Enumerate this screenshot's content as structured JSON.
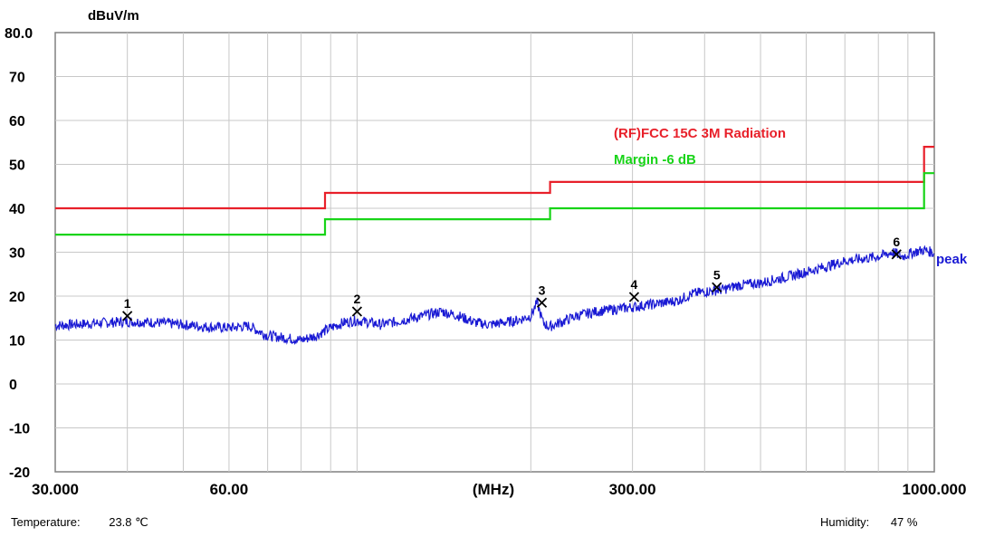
{
  "chart_data": {
    "type": "line",
    "ylabel": "dBuV/m",
    "xlabel": "(MHz)",
    "xscale": "log",
    "xlim": [
      30,
      1000
    ],
    "ylim": [
      -20,
      80
    ],
    "yticks": [
      "80.0",
      "70",
      "60",
      "50",
      "40",
      "30",
      "20",
      "10",
      "0",
      "-10",
      "-20"
    ],
    "xticks": [
      {
        "value": 30,
        "label": "30.000"
      },
      {
        "value": 60,
        "label": "60.00"
      },
      {
        "value": 300,
        "label": "300.00"
      },
      {
        "value": 1000,
        "label": "1000.000"
      }
    ],
    "grid": true,
    "legend_placement": "upper-right, inside plot",
    "series": [
      {
        "name": "(RF)FCC 15C 3M Radiation",
        "color": "#e8202a",
        "step": true,
        "x": [
          30,
          88,
          88,
          216,
          216,
          960,
          960,
          1000
        ],
        "y": [
          40,
          40,
          43.5,
          43.5,
          46,
          46,
          54,
          54
        ]
      },
      {
        "name": "Margin -6 dB",
        "color": "#18d418",
        "step": true,
        "x": [
          30,
          88,
          88,
          216,
          216,
          960,
          960,
          1000
        ],
        "y": [
          34,
          34,
          37.5,
          37.5,
          40,
          40,
          48,
          48
        ]
      },
      {
        "name": "peak",
        "color": "#1a1ad4",
        "x": [
          30,
          35,
          40,
          45,
          50,
          55,
          60,
          65,
          70,
          75,
          80,
          85,
          90,
          95,
          100,
          110,
          120,
          130,
          140,
          150,
          160,
          170,
          180,
          190,
          200,
          205,
          210,
          215,
          220,
          230,
          240,
          260,
          280,
          300,
          320,
          340,
          360,
          380,
          400,
          430,
          460,
          500,
          540,
          580,
          620,
          660,
          700,
          750,
          800,
          850,
          880,
          920,
          960,
          990,
          1000
        ],
        "y": [
          13.3,
          13.8,
          14.2,
          14.0,
          13.5,
          13.0,
          12.8,
          13.2,
          11.0,
          10.5,
          10.0,
          11.0,
          12.8,
          14.0,
          14.5,
          13.5,
          14.5,
          15.5,
          16.5,
          15.5,
          14.0,
          13.5,
          14.0,
          14.5,
          15.5,
          18.5,
          14.0,
          13.0,
          13.5,
          14.5,
          15.5,
          16.5,
          17.0,
          17.5,
          18.0,
          18.5,
          19.0,
          20.5,
          21.0,
          21.5,
          22.5,
          23.0,
          24.0,
          25.0,
          26.0,
          27.0,
          28.0,
          28.5,
          29.0,
          30.0,
          29.0,
          30.0,
          30.5,
          30.0,
          29.5
        ]
      }
    ],
    "annotations": [
      {
        "text": "peak",
        "color": "#1a1ad4"
      }
    ],
    "markers": [
      {
        "label": "1",
        "x": 40.0,
        "y": 15.5
      },
      {
        "label": "2",
        "x": 100.0,
        "y": 16.5
      },
      {
        "label": "3",
        "x": 209.0,
        "y": 18.5
      },
      {
        "label": "4",
        "x": 302.0,
        "y": 19.8
      },
      {
        "label": "5",
        "x": 420.0,
        "y": 22.0
      },
      {
        "label": "6",
        "x": 860.0,
        "y": 29.5
      }
    ]
  },
  "footer": {
    "temperature_label": "Temperature:",
    "temperature_value": "23.8 ℃",
    "humidity_label": "Humidity:",
    "humidity_value": "47 %"
  }
}
